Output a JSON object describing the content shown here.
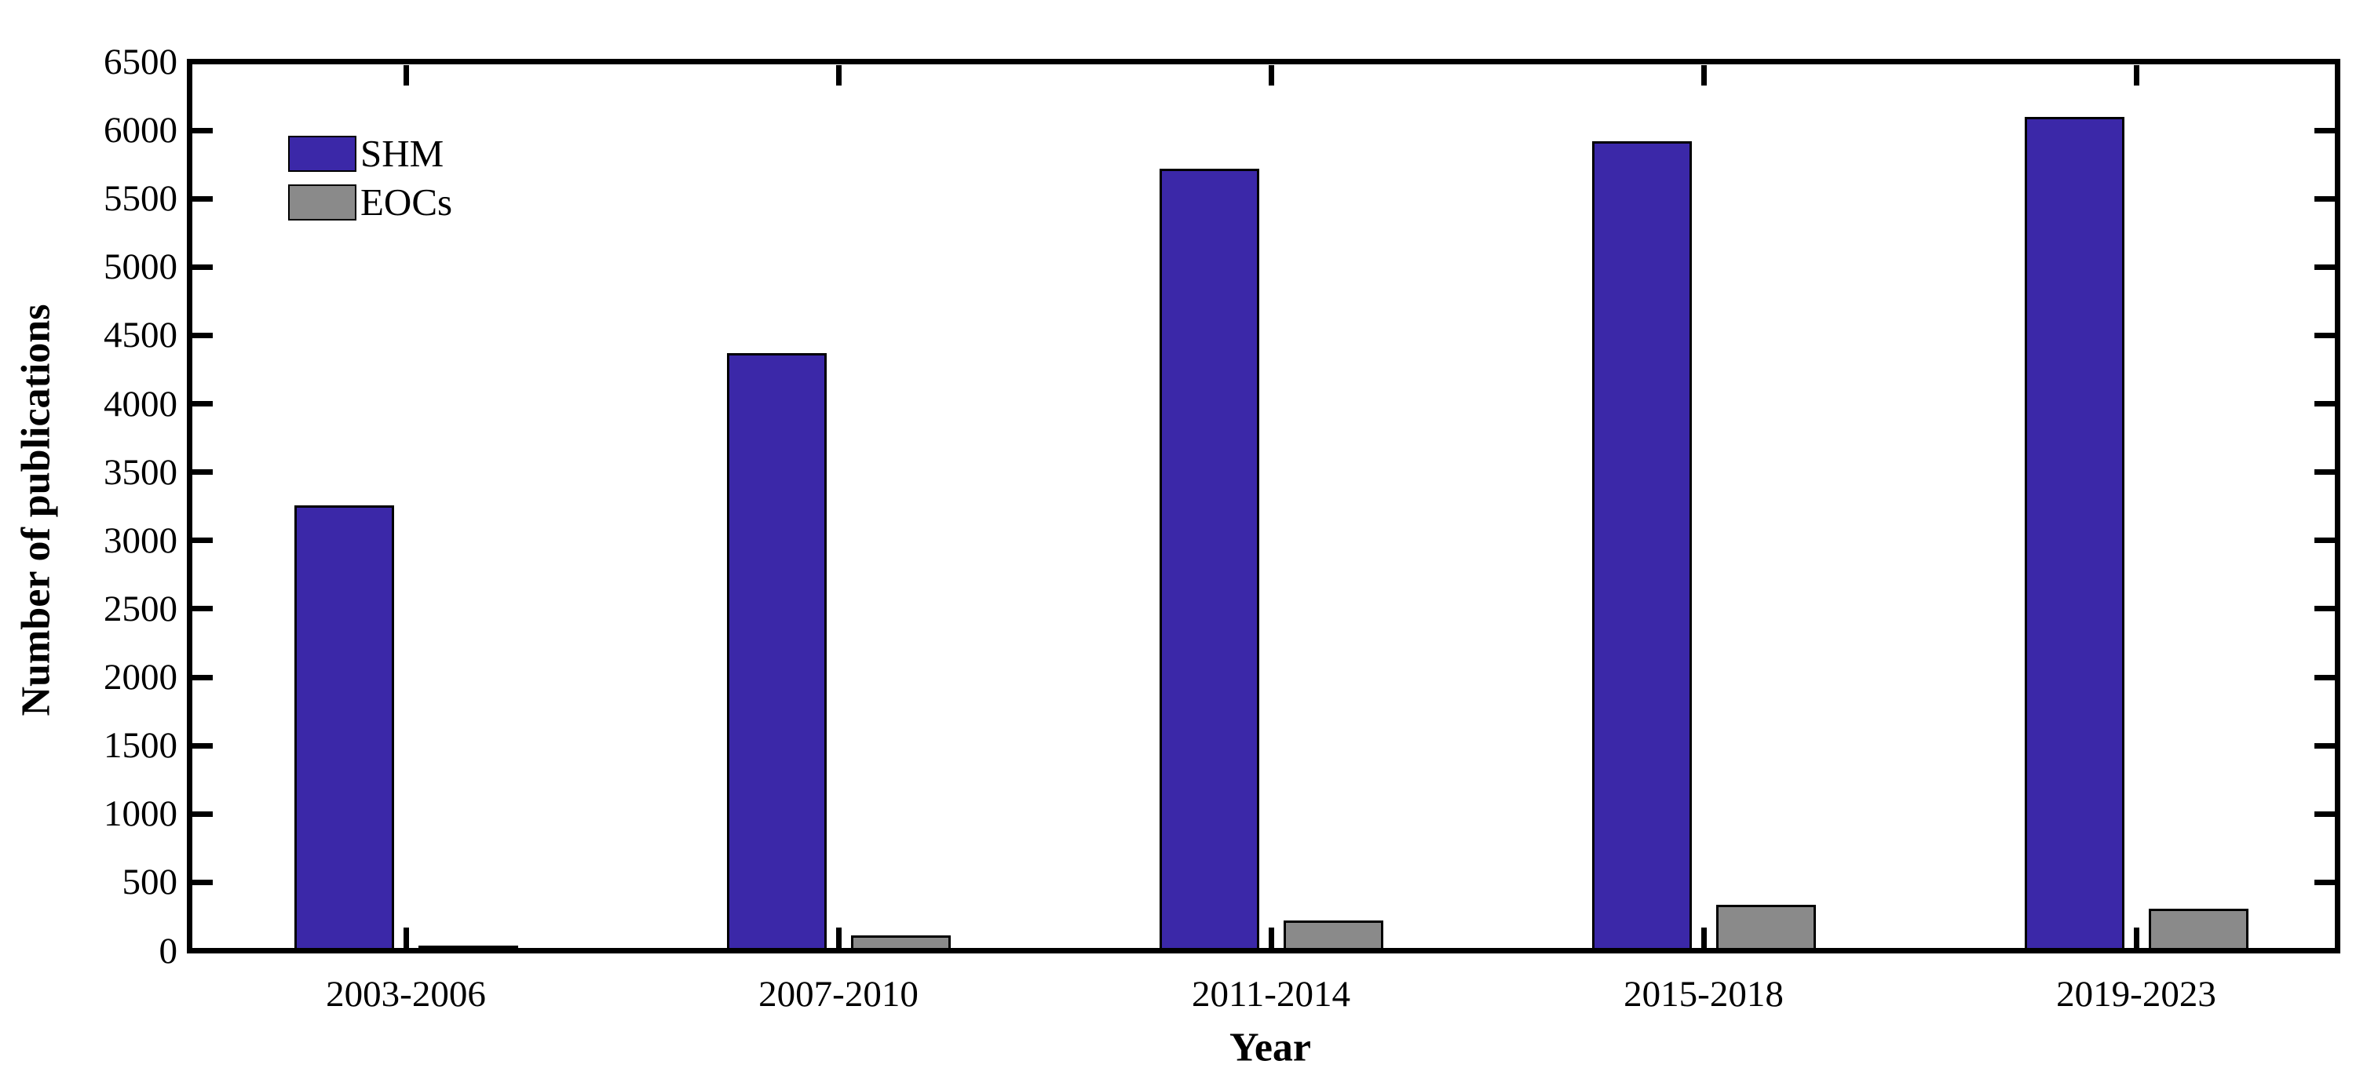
{
  "figure": {
    "background": "#ffffff",
    "axis_color": "#000000"
  },
  "chart_data": {
    "type": "bar",
    "title": "",
    "xlabel": "Year",
    "ylabel": "Number of publications",
    "categories": [
      "2003-2006",
      "2007-2010",
      "2011-2014",
      "2015-2018",
      "2019-2023"
    ],
    "series": [
      {
        "name": "SHM",
        "color": "#3b28a8",
        "values": [
          3255,
          4370,
          5720,
          5920,
          6100
        ]
      },
      {
        "name": "EOCs",
        "color": "#8a8a8a",
        "values": [
          40,
          110,
          220,
          335,
          305
        ]
      }
    ],
    "bar_edge_color": "#000000",
    "ylim": [
      0,
      6500
    ],
    "yticks": [
      0,
      500,
      1000,
      1500,
      2000,
      2500,
      3000,
      3500,
      4000,
      4500,
      5000,
      5500,
      6000,
      6500
    ],
    "grid": false,
    "legend_position": "upper left",
    "tick_direction": "in"
  }
}
